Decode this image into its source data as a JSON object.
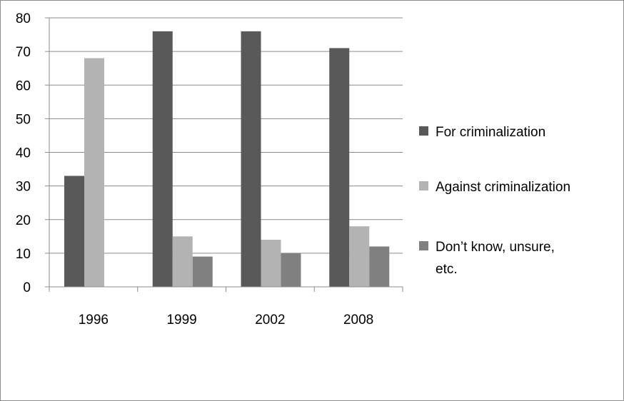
{
  "chart_data": {
    "type": "bar",
    "categories": [
      "1996",
      "1999",
      "2002",
      "2008"
    ],
    "series": [
      {
        "name": "For criminalization",
        "values": [
          33,
          76,
          76,
          71
        ],
        "color": "#595959"
      },
      {
        "name": "Against criminalization",
        "values": [
          68,
          15,
          14,
          18
        ],
        "color": "#b3b3b3"
      },
      {
        "name": "Don’t know, unsure, etc.",
        "values": [
          null,
          9,
          10,
          12
        ],
        "color": "#808080"
      }
    ],
    "yticks": [
      "0",
      "10",
      "20",
      "30",
      "40",
      "50",
      "60",
      "70",
      "80"
    ],
    "ylim": [
      0,
      80
    ],
    "grid": true,
    "legend_position": "right",
    "legend_lines": [
      [
        "For criminalization"
      ],
      [
        "Against criminalization"
      ],
      [
        "Don’t know, unsure,",
        "etc."
      ]
    ]
  }
}
